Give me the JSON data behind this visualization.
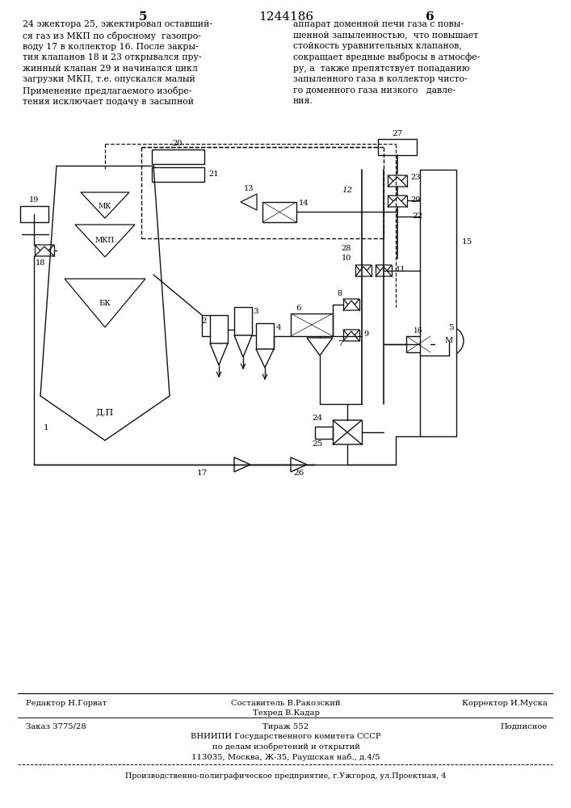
{
  "page_number_left": "5",
  "patent_number": "1244186",
  "page_number_right": "6",
  "text_left": "24 эжектора 25, эжектировал оставший-\nся газ из МКП по сбросному  газопро-\nводу 17 в коллектор 16. После закры-\nтия клапанов 18 и 23 открывался пру-\nжинный клапан 29 и начинался цикл\nзагрузки МКП, т.е. опускался малый\nПрименение предлагаемого изобре-\nтения исключает подачу в засыпной",
  "text_right": "аппарат доменной печи газа с повы-\nшенной запыленностью,  что повышает\nстойкость уравнительных клапанов,\nсокращает вредные выбросы в атмосфе-\nру, а  также препятствует попаданию\nзапыленного газа в коллектор чисто-\nго доменного газа низкого   давле-\nния.",
  "footer_line1_left": "Редактор Н.Горват",
  "footer_line1_center": "Составитель В.Ракозский\nТехред В.Кадар",
  "footer_line1_right": "Корректор И.Муска",
  "footer_line2_left": "Заказ 3775/28",
  "footer_line2_center": "Тираж 552\nВНИИПИ Государственного комитета СССР\nпо делам изобретений и открытий\n113035, Москва, Ж-35, Раушская наб., д.4/5",
  "footer_line2_right": "Подписное",
  "footer_line3": "Производственно-полиграфическое предприятие, г.Ужгород, ул.Проектная, 4",
  "bg_color": "#ffffff",
  "text_color": "#000000",
  "diagram_color": "#111111"
}
